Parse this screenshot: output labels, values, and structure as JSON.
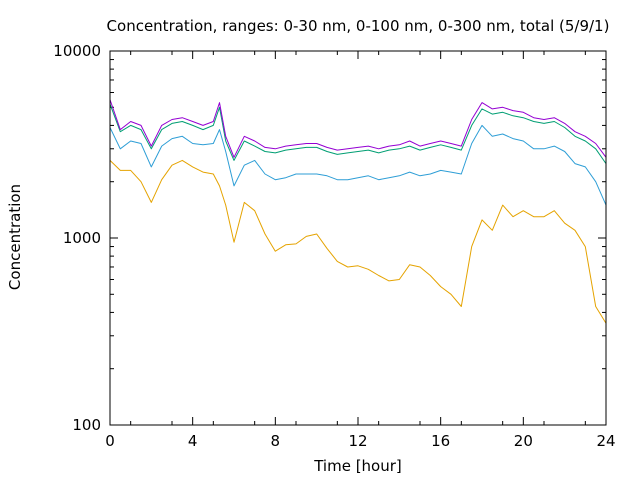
{
  "chart_data": {
    "type": "line",
    "title": "Concentration, ranges: 0-30 nm, 0-100 nm, 0-300 nm, total (5/9/1)",
    "xlabel": "Time [hour]",
    "ylabel": "Concentration",
    "xlim": [
      0,
      24
    ],
    "ylim": [
      100,
      10000
    ],
    "yscale": "log",
    "grid": false,
    "legend": "none",
    "x_ticks": [
      0,
      4,
      8,
      12,
      16,
      20,
      24
    ],
    "y_ticks": [
      100,
      1000,
      10000
    ],
    "x": [
      0,
      0.5,
      1,
      1.5,
      2,
      2.5,
      3,
      3.5,
      4,
      4.5,
      5,
      5.3,
      5.6,
      6,
      6.5,
      7,
      7.5,
      8,
      8.5,
      9,
      9.5,
      10,
      10.5,
      11,
      11.5,
      12,
      12.5,
      13,
      13.5,
      14,
      14.5,
      15,
      15.5,
      16,
      16.5,
      17,
      17.5,
      18,
      18.5,
      19,
      19.5,
      20,
      20.5,
      21,
      21.5,
      22,
      22.5,
      23,
      23.5,
      24
    ],
    "series": [
      {
        "color": "#e5a300",
        "values": [
          2600,
          2300,
          2300,
          2000,
          1550,
          2050,
          2450,
          2600,
          2400,
          2250,
          2200,
          1900,
          1500,
          950,
          1550,
          1400,
          1050,
          850,
          920,
          930,
          1020,
          1050,
          880,
          750,
          700,
          710,
          680,
          630,
          590,
          600,
          720,
          700,
          630,
          550,
          500,
          430,
          900,
          1250,
          1100,
          1500,
          1300,
          1400,
          1300,
          1300,
          1400,
          1200,
          1100,
          900,
          430,
          350
        ]
      },
      {
        "color": "#2e9ed6",
        "values": [
          3900,
          3000,
          3300,
          3200,
          2400,
          3100,
          3400,
          3500,
          3200,
          3150,
          3200,
          3800,
          2900,
          1900,
          2450,
          2600,
          2200,
          2050,
          2100,
          2200,
          2200,
          2200,
          2150,
          2050,
          2050,
          2100,
          2150,
          2050,
          2100,
          2150,
          2250,
          2150,
          2200,
          2300,
          2250,
          2200,
          3200,
          4000,
          3500,
          3600,
          3400,
          3300,
          3000,
          3000,
          3100,
          2900,
          2500,
          2400,
          2000,
          1500
        ]
      },
      {
        "color": "#009e73",
        "values": [
          5200,
          3700,
          4000,
          3800,
          3000,
          3800,
          4100,
          4200,
          4000,
          3800,
          4000,
          5000,
          3300,
          2600,
          3300,
          3100,
          2900,
          2850,
          2950,
          3000,
          3050,
          3050,
          2900,
          2800,
          2850,
          2900,
          2950,
          2850,
          2950,
          3000,
          3100,
          2950,
          3050,
          3150,
          3050,
          2950,
          4000,
          4900,
          4600,
          4700,
          4500,
          4400,
          4200,
          4100,
          4200,
          3900,
          3500,
          3300,
          3000,
          2500
        ]
      },
      {
        "color": "#9400d3",
        "values": [
          5500,
          3800,
          4200,
          4000,
          3100,
          4000,
          4300,
          4400,
          4200,
          4000,
          4200,
          5300,
          3500,
          2700,
          3500,
          3300,
          3050,
          3000,
          3100,
          3150,
          3200,
          3200,
          3050,
          2950,
          3000,
          3050,
          3100,
          3000,
          3100,
          3150,
          3300,
          3100,
          3200,
          3300,
          3200,
          3100,
          4300,
          5300,
          4900,
          5000,
          4800,
          4700,
          4400,
          4300,
          4400,
          4100,
          3700,
          3500,
          3200,
          2700
        ]
      }
    ]
  }
}
